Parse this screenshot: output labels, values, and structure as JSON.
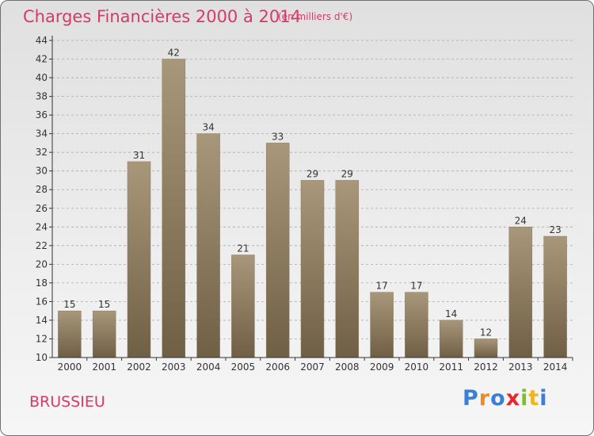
{
  "header": {
    "title": "Charges Financières 2000 à 2014",
    "subtitle": "(en milliers d'€)"
  },
  "footer": {
    "commune": "BRUSSIEU",
    "logo": [
      "P",
      "r",
      "o",
      "x",
      "i",
      "t",
      "i"
    ]
  },
  "colors": {
    "title": "#d63a66",
    "bar_light": "#a8977a",
    "bar_dark": "#6f5f45",
    "axis": "#333333",
    "grid": "#aaaaaa",
    "logo": [
      "#3a7fd5",
      "#f08a1e",
      "#3a7fd5",
      "#e8262c",
      "#7cbf2a",
      "#f0b41e",
      "#3a7fd5"
    ]
  },
  "chart_data": {
    "type": "bar",
    "categories": [
      "2000",
      "2001",
      "2002",
      "2003",
      "2004",
      "2005",
      "2006",
      "2007",
      "2008",
      "2009",
      "2010",
      "2011",
      "2012",
      "2013",
      "2014"
    ],
    "values": [
      15,
      15,
      31,
      42,
      34,
      21,
      33,
      29,
      29,
      17,
      17,
      14,
      12,
      24,
      23
    ],
    "ylim": [
      10,
      44
    ],
    "yticks": [
      10,
      12,
      14,
      16,
      18,
      20,
      22,
      24,
      26,
      28,
      30,
      32,
      34,
      36,
      38,
      40,
      42,
      44
    ],
    "grid": "y-only dashed",
    "legend": "none"
  }
}
